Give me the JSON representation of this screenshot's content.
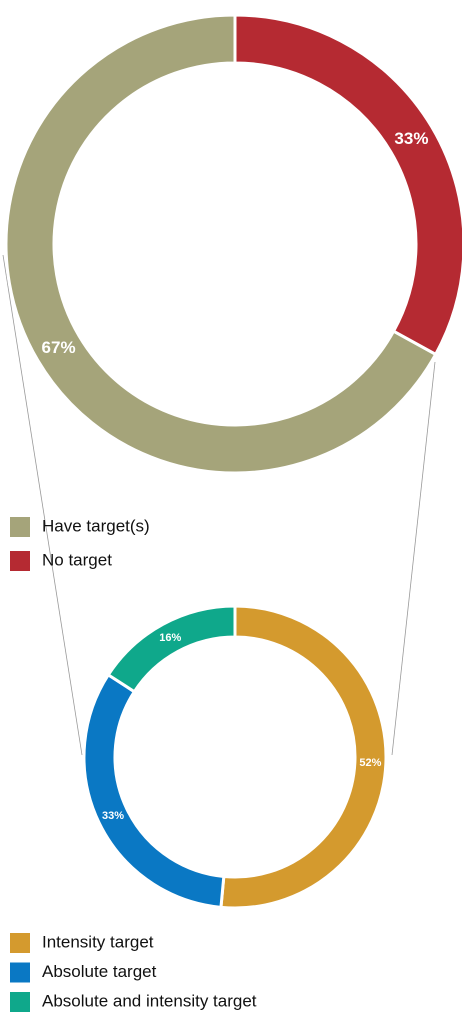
{
  "chart_data": [
    {
      "type": "pie",
      "donut": true,
      "categories": [
        "Have target(s)",
        "No target"
      ],
      "values": [
        67,
        33
      ],
      "value_labels": [
        "67%",
        "33%"
      ],
      "colors": [
        "#a5a47a",
        "#b52a32"
      ]
    },
    {
      "type": "pie",
      "donut": true,
      "categories": [
        "Intensity target",
        "Absolute target",
        "Absolute and intensity target"
      ],
      "values": [
        52,
        33,
        16
      ],
      "value_labels": [
        "52%",
        "33%",
        "16%"
      ],
      "colors": [
        "#d49a2e",
        "#0a78c4",
        "#0fa88b"
      ]
    }
  ]
}
